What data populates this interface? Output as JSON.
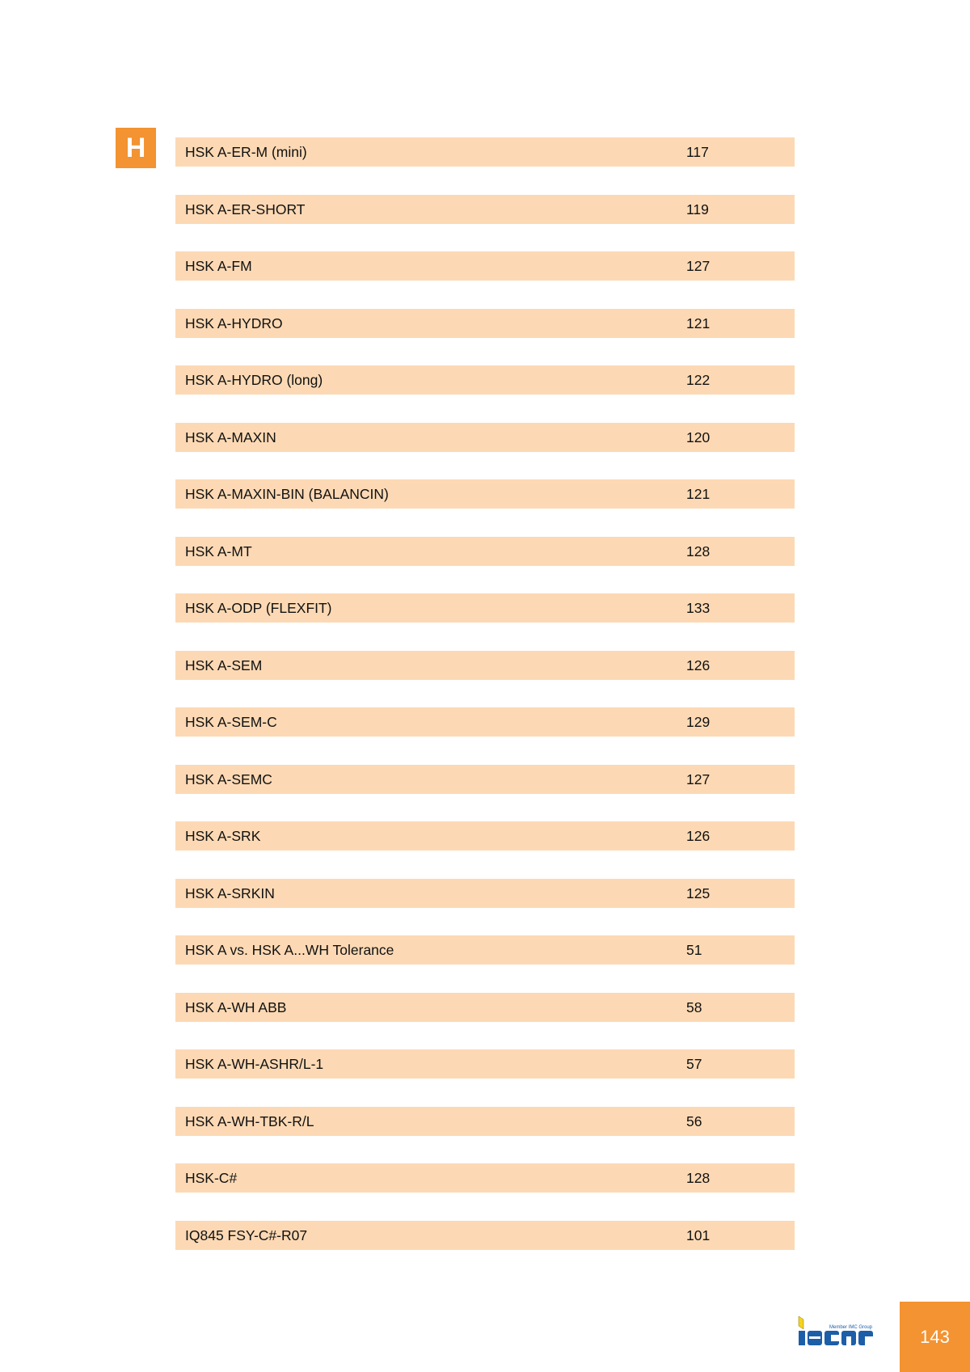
{
  "section_letter": "H",
  "entries": [
    {
      "name": "HSK A-ER-M (mini)",
      "page": "117"
    },
    {
      "name": "HSK A-ER-SHORT",
      "page": "119"
    },
    {
      "name": "HSK A-FM",
      "page": "127"
    },
    {
      "name": "HSK A-HYDRO",
      "page": "121"
    },
    {
      "name": "HSK A-HYDRO (long)",
      "page": "122"
    },
    {
      "name": "HSK A-MAXIN",
      "page": "120"
    },
    {
      "name": "HSK A-MAXIN-BIN (BALANCIN)",
      "page": "121"
    },
    {
      "name": "HSK A-MT",
      "page": "128"
    },
    {
      "name": "HSK A-ODP (FLEXFIT)",
      "page": "133"
    },
    {
      "name": "HSK A-SEM",
      "page": "126"
    },
    {
      "name": "HSK A-SEM-C",
      "page": "129"
    },
    {
      "name": "HSK A-SEMC",
      "page": "127"
    },
    {
      "name": "HSK A-SRK",
      "page": "126"
    },
    {
      "name": "HSK A-SRKIN",
      "page": "125"
    },
    {
      "name": "HSK A vs. HSK A...WH Tolerance",
      "page": "51"
    },
    {
      "name": "HSK A-WH ABB",
      "page": "58"
    },
    {
      "name": "HSK A-WH-ASHR/L-1",
      "page": "57"
    },
    {
      "name": "HSK A-WH-TBK-R/L",
      "page": "56"
    },
    {
      "name": "HSK-C#",
      "page": "128"
    },
    {
      "name": "IQ845 FSY-C#-R07",
      "page": "101"
    }
  ],
  "logo": {
    "tagline": "Member IMC Group",
    "brand": "iscar"
  },
  "page_number": "143",
  "colors": {
    "accent": "#f39331",
    "row_bg": "#fcd9b4",
    "logo_blue": "#1d5ea8",
    "logo_yellow": "#f5d31c"
  }
}
